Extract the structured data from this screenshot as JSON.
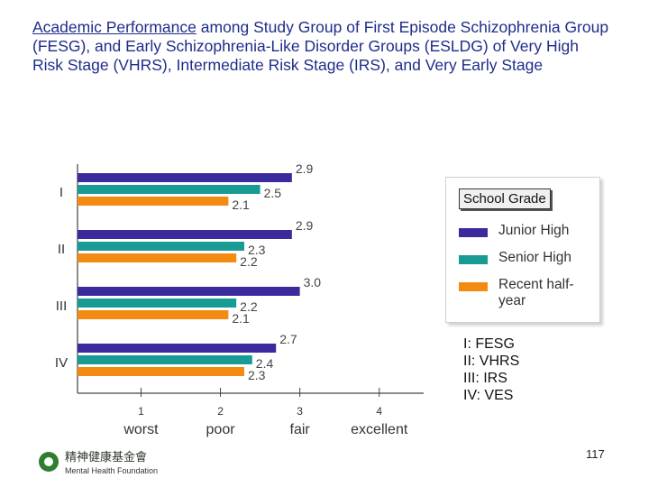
{
  "title": {
    "highlight": "Academic Performance",
    "rest": " among Study Group of First  Episode Schizophrenia Group (FESG), and Early Schizophrenia-Like Disorder Groups (ESLDG) of Very High Risk Stage (VHRS), Intermediate Risk Stage (IRS), and Very Early Stage"
  },
  "colors": {
    "junior_high": "#3a2a9e",
    "senior_high": "#179b94",
    "recent_half_year": "#f38b12",
    "title": "#1f2d8a"
  },
  "chart_data": {
    "type": "bar",
    "orientation": "horizontal",
    "categories": [
      "I",
      "II",
      "III",
      "IV"
    ],
    "series": [
      {
        "name": "Junior High",
        "values": [
          2.9,
          2.9,
          3.0,
          2.7
        ]
      },
      {
        "name": "Senior High",
        "values": [
          2.5,
          2.3,
          2.2,
          2.4
        ]
      },
      {
        "name": "Recent half-year",
        "values": [
          2.1,
          2.2,
          2.1,
          2.3
        ]
      }
    ],
    "xlim": [
      0.2,
      4.9
    ],
    "xticks": [
      1,
      2,
      3,
      4
    ],
    "xtick_labels": [
      "1",
      "2",
      "3",
      "4"
    ],
    "xtick_words": [
      "worst",
      "poor",
      "fair",
      "excellent"
    ],
    "legend": {
      "title": "School Grade",
      "position": "right"
    }
  },
  "groups_note": [
    "I: FESG",
    "II: VHRS",
    "III: IRS",
    "IV: VES"
  ],
  "footer": {
    "org_chinese": "精神健康基金會",
    "org_english": "Mental Health Foundation",
    "page_number": "117"
  }
}
